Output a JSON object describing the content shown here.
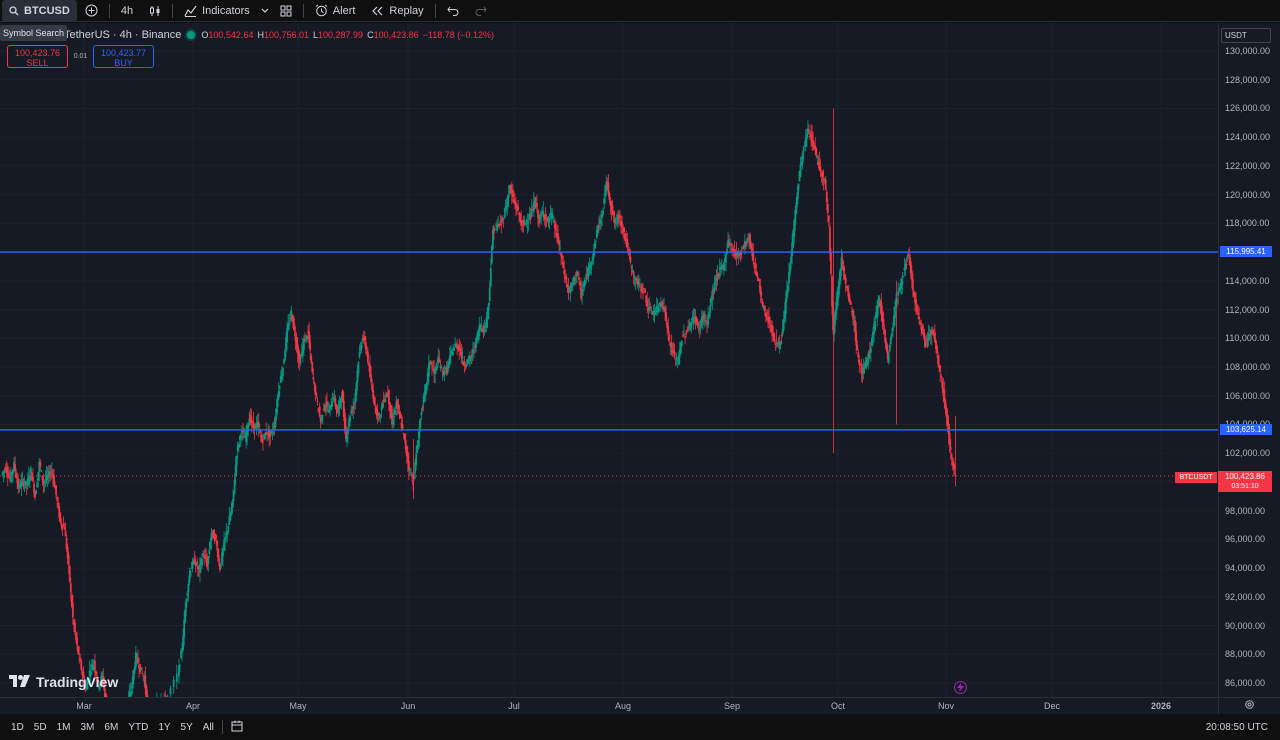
{
  "toolbar": {
    "symbol": "BTCUSD",
    "interval": "4h",
    "indicators": "Indicators",
    "alert": "Alert",
    "replay": "Replay",
    "tooltip": "Symbol Search"
  },
  "legend": {
    "title": "TetherUS · 4h · Binance",
    "open_label": "O",
    "open": "100,542.64",
    "high_label": "H",
    "high": "100,756.01",
    "low_label": "L",
    "low": "100,287.99",
    "close_label": "C",
    "close": "100,423.86",
    "change": "−118.78 (−0.12%)"
  },
  "trade": {
    "sell_price": "100,423.76",
    "sell_label": "SELL",
    "spread": "0.01",
    "buy_price": "100,423.77",
    "buy_label": "BUY"
  },
  "currency": "USDT",
  "price_axis": {
    "ticks": [
      "130,000.00",
      "128,000.00",
      "126,000.00",
      "124,000.00",
      "122,000.00",
      "120,000.00",
      "118,000.00",
      "116,000.00",
      "114,000.00",
      "112,000.00",
      "110,000.00",
      "108,000.00",
      "106,000.00",
      "104,000.00",
      "102,000.00",
      "100,000.00",
      "98,000.00",
      "96,000.00",
      "94,000.00",
      "92,000.00",
      "90,000.00",
      "88,000.00",
      "86,000.00"
    ]
  },
  "levels": {
    "upper": 115995.41,
    "upper_label": "115,995.41",
    "lower": 103625.14,
    "lower_label": "103,625.14"
  },
  "last_price": {
    "symbol": "BTCUSDT",
    "price": "100,423.86",
    "countdown": "03:51:10",
    "value": 100423.86
  },
  "time_axis": {
    "months": [
      "Mar",
      "Apr",
      "May",
      "Jun",
      "Jul",
      "Aug",
      "Sep",
      "Oct",
      "Nov",
      "Dec",
      "2026"
    ]
  },
  "colors": {
    "up": "#089981",
    "down": "#f23645",
    "level": "#2962ff",
    "background": "#161a25"
  },
  "brand": "TradingView",
  "ranges": [
    "1D",
    "5D",
    "1M",
    "3M",
    "6M",
    "YTD",
    "1Y",
    "5Y",
    "All"
  ],
  "clock": "20:08:50 UTC",
  "price_series": [
    [
      0,
      100500
    ],
    [
      1,
      101000
    ],
    [
      2,
      100200
    ],
    [
      3,
      101200
    ],
    [
      4,
      99600
    ],
    [
      5,
      100000
    ],
    [
      6,
      99800
    ],
    [
      7,
      100800
    ],
    [
      8,
      99000
    ],
    [
      9,
      101300
    ],
    [
      10,
      99900
    ],
    [
      11,
      100400
    ],
    [
      12,
      100800
    ],
    [
      13,
      99100
    ],
    [
      14,
      97200
    ],
    [
      15,
      96800
    ],
    [
      16,
      94000
    ],
    [
      17,
      90500
    ],
    [
      18,
      88500
    ],
    [
      19,
      87000
    ],
    [
      20,
      85500
    ],
    [
      21,
      86800
    ],
    [
      22,
      87500
    ],
    [
      23,
      85800
    ],
    [
      24,
      86500
    ],
    [
      25,
      84500
    ],
    [
      30,
      84500
    ],
    [
      31,
      85800
    ],
    [
      32,
      87900
    ],
    [
      33,
      87000
    ],
    [
      34,
      86300
    ],
    [
      35,
      84000
    ],
    [
      36,
      83500
    ],
    [
      37,
      84500
    ],
    [
      38,
      85000
    ],
    [
      39,
      84700
    ],
    [
      42,
      86500
    ],
    [
      43,
      88500
    ],
    [
      44,
      92000
    ],
    [
      45,
      94000
    ],
    [
      46,
      94500
    ],
    [
      47,
      93800
    ],
    [
      48,
      95000
    ],
    [
      49,
      94200
    ],
    [
      50,
      96500
    ],
    [
      51,
      96000
    ],
    [
      52,
      94000
    ],
    [
      53,
      95700
    ],
    [
      54,
      97000
    ],
    [
      55,
      98500
    ],
    [
      56,
      102000
    ],
    [
      57,
      103500
    ],
    [
      58,
      103000
    ],
    [
      59,
      104500
    ],
    [
      60,
      103800
    ],
    [
      61,
      104000
    ],
    [
      62,
      102800
    ],
    [
      63,
      103500
    ],
    [
      64,
      103200
    ],
    [
      65,
      104000
    ],
    [
      66,
      106500
    ],
    [
      67,
      108000
    ],
    [
      68,
      110500
    ],
    [
      69,
      111800
    ],
    [
      70,
      110000
    ],
    [
      71,
      108200
    ],
    [
      72,
      109800
    ],
    [
      73,
      110400
    ],
    [
      74,
      107500
    ],
    [
      75,
      105800
    ],
    [
      76,
      104200
    ],
    [
      77,
      105500
    ],
    [
      78,
      104900
    ],
    [
      79,
      106000
    ],
    [
      80,
      104800
    ],
    [
      81,
      106200
    ],
    [
      82,
      103000
    ],
    [
      83,
      104700
    ],
    [
      84,
      105500
    ],
    [
      85,
      108500
    ],
    [
      86,
      110200
    ],
    [
      87,
      109000
    ],
    [
      88,
      106800
    ],
    [
      89,
      105200
    ],
    [
      90,
      104500
    ],
    [
      91,
      105800
    ],
    [
      92,
      106200
    ],
    [
      93,
      104000
    ],
    [
      94,
      105500
    ],
    [
      95,
      104300
    ],
    [
      96,
      102800
    ],
    [
      97,
      101000
    ],
    [
      98,
      100000
    ],
    [
      99,
      102500
    ],
    [
      100,
      105000
    ],
    [
      101,
      106500
    ],
    [
      102,
      108500
    ],
    [
      103,
      107500
    ],
    [
      104,
      108500
    ],
    [
      105,
      107600
    ],
    [
      106,
      107800
    ],
    [
      107,
      108900
    ],
    [
      108,
      109500
    ],
    [
      109,
      109400
    ],
    [
      110,
      108200
    ],
    [
      111,
      108400
    ],
    [
      112,
      108800
    ],
    [
      113,
      109800
    ],
    [
      114,
      111000
    ],
    [
      115,
      110500
    ],
    [
      116,
      112500
    ],
    [
      117,
      117500
    ],
    [
      118,
      117800
    ],
    [
      119,
      118000
    ],
    [
      120,
      119000
    ],
    [
      121,
      120500
    ],
    [
      122,
      119500
    ],
    [
      123,
      118800
    ],
    [
      124,
      117800
    ],
    [
      125,
      118200
    ],
    [
      126,
      118500
    ],
    [
      127,
      119600
    ],
    [
      128,
      118200
    ],
    [
      129,
      118800
    ],
    [
      130,
      118100
    ],
    [
      131,
      118600
    ],
    [
      132,
      117400
    ],
    [
      133,
      116100
    ],
    [
      134,
      114500
    ],
    [
      135,
      113200
    ],
    [
      136,
      113800
    ],
    [
      137,
      114700
    ],
    [
      138,
      113000
    ],
    [
      139,
      114000
    ],
    [
      140,
      115000
    ],
    [
      141,
      116100
    ],
    [
      142,
      117800
    ],
    [
      143,
      118500
    ],
    [
      144,
      121000
    ],
    [
      145,
      119400
    ],
    [
      146,
      118000
    ],
    [
      147,
      118500
    ],
    [
      148,
      117600
    ],
    [
      149,
      116400
    ],
    [
      150,
      114800
    ],
    [
      151,
      114000
    ],
    [
      152,
      113600
    ],
    [
      153,
      113300
    ],
    [
      154,
      112000
    ],
    [
      155,
      111800
    ],
    [
      156,
      112000
    ],
    [
      157,
      112600
    ],
    [
      158,
      111800
    ],
    [
      159,
      109700
    ],
    [
      160,
      108900
    ],
    [
      161,
      108300
    ],
    [
      162,
      110000
    ],
    [
      163,
      110400
    ],
    [
      164,
      111000
    ],
    [
      165,
      111500
    ],
    [
      166,
      110600
    ],
    [
      167,
      111600
    ],
    [
      168,
      110900
    ],
    [
      169,
      112800
    ],
    [
      170,
      114000
    ],
    [
      171,
      114700
    ],
    [
      172,
      115100
    ],
    [
      173,
      116800
    ],
    [
      174,
      116200
    ],
    [
      175,
      115800
    ],
    [
      176,
      116000
    ],
    [
      177,
      116600
    ],
    [
      178,
      117000
    ],
    [
      179,
      115400
    ],
    [
      180,
      114300
    ],
    [
      181,
      112500
    ],
    [
      182,
      111600
    ],
    [
      183,
      111000
    ],
    [
      184,
      109800
    ],
    [
      185,
      109500
    ],
    [
      186,
      110500
    ],
    [
      187,
      113200
    ],
    [
      188,
      115800
    ],
    [
      189,
      118800
    ],
    [
      190,
      121500
    ],
    [
      191,
      123200
    ],
    [
      192,
      124500
    ],
    [
      193,
      123800
    ],
    [
      194,
      122800
    ],
    [
      195,
      121600
    ],
    [
      196,
      121000
    ],
    [
      197,
      118000
    ],
    [
      198,
      110500
    ],
    [
      199,
      113000
    ],
    [
      200,
      115500
    ],
    [
      201,
      113600
    ],
    [
      202,
      112500
    ],
    [
      203,
      111000
    ],
    [
      204,
      108500
    ],
    [
      205,
      107500
    ],
    [
      206,
      108400
    ],
    [
      207,
      109500
    ],
    [
      208,
      111200
    ],
    [
      209,
      112900
    ],
    [
      210,
      110800
    ],
    [
      211,
      108500
    ],
    [
      212,
      110500
    ],
    [
      213,
      112600
    ],
    [
      214,
      113700
    ],
    [
      215,
      114800
    ],
    [
      216,
      115800
    ],
    [
      217,
      113400
    ],
    [
      218,
      111700
    ],
    [
      219,
      110800
    ],
    [
      220,
      109500
    ],
    [
      221,
      110500
    ],
    [
      222,
      110200
    ],
    [
      223,
      108300
    ],
    [
      224,
      106700
    ],
    [
      225,
      104600
    ],
    [
      226,
      102000
    ],
    [
      227,
      100400
    ]
  ]
}
